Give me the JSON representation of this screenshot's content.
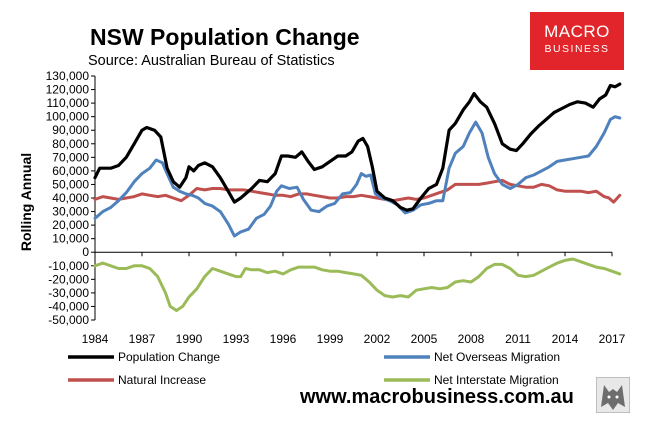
{
  "title": "NSW Population Change",
  "subtitle": "Source: Australian Bureau of Statistics",
  "logo": {
    "line1": "MACRO",
    "line2": "BUSINESS",
    "icon": "wolf-icon",
    "color": "#e1252a"
  },
  "website": "www.macrobusiness.com.au",
  "chart_data": {
    "type": "line",
    "title": "NSW Population Change",
    "xlabel": "",
    "ylabel": "Rolling Annual",
    "xlim": [
      1984,
      2017
    ],
    "ylim": [
      -50000,
      130000
    ],
    "x_ticks": [
      "1984",
      "1987",
      "1990",
      "1993",
      "1996",
      "1999",
      "2002",
      "2005",
      "2008",
      "2011",
      "2014",
      "2017"
    ],
    "y_ticks": [
      "130,000",
      "120,000",
      "110,000",
      "100,000",
      "90,000",
      "80,000",
      "70,000",
      "60,000",
      "50,000",
      "40,000",
      "30,000",
      "20,000",
      "10,000",
      "0",
      "-10,000",
      "-20,000",
      "-30,000",
      "-40,000",
      "-50,000"
    ],
    "grid": false,
    "legend_position": "bottom",
    "series": [
      {
        "name": "Population Change",
        "color": "#000000",
        "points": [
          [
            1984,
            55000
          ],
          [
            1984.3,
            62000
          ],
          [
            1985,
            62000
          ],
          [
            1985.5,
            64000
          ],
          [
            1986,
            70000
          ],
          [
            1986.5,
            80000
          ],
          [
            1987,
            90000
          ],
          [
            1987.3,
            92000
          ],
          [
            1987.8,
            90000
          ],
          [
            1988.2,
            85000
          ],
          [
            1988.6,
            62000
          ],
          [
            1989,
            52000
          ],
          [
            1989.4,
            48000
          ],
          [
            1989.8,
            55000
          ],
          [
            1990,
            63000
          ],
          [
            1990.3,
            60000
          ],
          [
            1990.6,
            64000
          ],
          [
            1991,
            66000
          ],
          [
            1991.5,
            63000
          ],
          [
            1992,
            55000
          ],
          [
            1992.5,
            45000
          ],
          [
            1992.9,
            37000
          ],
          [
            1993.3,
            40000
          ],
          [
            1994,
            47000
          ],
          [
            1994.5,
            53000
          ],
          [
            1995,
            52000
          ],
          [
            1995.5,
            58000
          ],
          [
            1995.9,
            71000
          ],
          [
            1996.3,
            71000
          ],
          [
            1996.8,
            70000
          ],
          [
            1997.2,
            74000
          ],
          [
            1997.6,
            67000
          ],
          [
            1998,
            61000
          ],
          [
            1998.5,
            63000
          ],
          [
            1999,
            67000
          ],
          [
            1999.5,
            71000
          ],
          [
            2000,
            71000
          ],
          [
            2000.4,
            74000
          ],
          [
            2000.8,
            82000
          ],
          [
            2001.1,
            84000
          ],
          [
            2001.4,
            78000
          ],
          [
            2001.7,
            63000
          ],
          [
            2002,
            45000
          ],
          [
            2002.5,
            40000
          ],
          [
            2003,
            38000
          ],
          [
            2003.5,
            33000
          ],
          [
            2003.9,
            31000
          ],
          [
            2004.3,
            32000
          ],
          [
            2004.8,
            40000
          ],
          [
            2005.3,
            47000
          ],
          [
            2005.8,
            50000
          ],
          [
            2006.2,
            62000
          ],
          [
            2006.6,
            90000
          ],
          [
            2007,
            95000
          ],
          [
            2007.5,
            105000
          ],
          [
            2007.9,
            111000
          ],
          [
            2008.2,
            117000
          ],
          [
            2008.6,
            111000
          ],
          [
            2009,
            107000
          ],
          [
            2009.5,
            95000
          ],
          [
            2010,
            80000
          ],
          [
            2010.5,
            76000
          ],
          [
            2010.9,
            75000
          ],
          [
            2011.3,
            80000
          ],
          [
            2011.8,
            87000
          ],
          [
            2012.3,
            93000
          ],
          [
            2012.8,
            98000
          ],
          [
            2013.3,
            103000
          ],
          [
            2013.8,
            106000
          ],
          [
            2014.3,
            109000
          ],
          [
            2014.8,
            111000
          ],
          [
            2015.3,
            110000
          ],
          [
            2015.8,
            107000
          ],
          [
            2016.2,
            113000
          ],
          [
            2016.6,
            116000
          ],
          [
            2016.9,
            123000
          ],
          [
            2017.2,
            122000
          ],
          [
            2017.5,
            124000
          ]
        ]
      },
      {
        "name": "Net Overseas Migration",
        "color": "#4f81bd",
        "points": [
          [
            1984,
            25000
          ],
          [
            1984.5,
            30000
          ],
          [
            1985,
            33000
          ],
          [
            1985.5,
            38000
          ],
          [
            1986,
            44000
          ],
          [
            1986.5,
            52000
          ],
          [
            1987,
            58000
          ],
          [
            1987.5,
            62000
          ],
          [
            1987.9,
            68000
          ],
          [
            1988.3,
            66000
          ],
          [
            1988.6,
            58000
          ],
          [
            1989,
            48000
          ],
          [
            1989.4,
            45000
          ],
          [
            1989.8,
            43000
          ],
          [
            1990.2,
            42000
          ],
          [
            1990.6,
            40000
          ],
          [
            1991,
            36000
          ],
          [
            1991.5,
            34000
          ],
          [
            1992,
            30000
          ],
          [
            1992.5,
            21000
          ],
          [
            1992.9,
            12000
          ],
          [
            1993.3,
            15000
          ],
          [
            1993.8,
            17000
          ],
          [
            1994.3,
            25000
          ],
          [
            1994.8,
            28000
          ],
          [
            1995.2,
            34000
          ],
          [
            1995.6,
            45000
          ],
          [
            1995.9,
            49000
          ],
          [
            1996.4,
            47000
          ],
          [
            1996.9,
            48000
          ],
          [
            1997.3,
            39000
          ],
          [
            1997.8,
            31000
          ],
          [
            1998.3,
            30000
          ],
          [
            1998.8,
            34000
          ],
          [
            1999.3,
            36000
          ],
          [
            1999.8,
            43000
          ],
          [
            2000.3,
            44000
          ],
          [
            2000.7,
            50000
          ],
          [
            2001,
            58000
          ],
          [
            2001.3,
            56000
          ],
          [
            2001.6,
            57000
          ],
          [
            2001.9,
            43000
          ],
          [
            2002.3,
            40000
          ],
          [
            2002.8,
            38000
          ],
          [
            2003.3,
            35000
          ],
          [
            2003.8,
            29000
          ],
          [
            2004.3,
            31000
          ],
          [
            2004.8,
            35000
          ],
          [
            2005.3,
            36000
          ],
          [
            2005.8,
            38000
          ],
          [
            2006.2,
            38000
          ],
          [
            2006.6,
            62000
          ],
          [
            2007,
            73000
          ],
          [
            2007.5,
            78000
          ],
          [
            2007.9,
            88000
          ],
          [
            2008.3,
            96000
          ],
          [
            2008.7,
            88000
          ],
          [
            2009.1,
            70000
          ],
          [
            2009.5,
            58000
          ],
          [
            2010,
            50000
          ],
          [
            2010.5,
            47000
          ],
          [
            2011,
            50000
          ],
          [
            2011.5,
            55000
          ],
          [
            2012,
            57000
          ],
          [
            2012.5,
            60000
          ],
          [
            2013,
            63000
          ],
          [
            2013.5,
            67000
          ],
          [
            2014,
            68000
          ],
          [
            2014.5,
            69000
          ],
          [
            2015,
            70000
          ],
          [
            2015.5,
            71000
          ],
          [
            2016,
            78000
          ],
          [
            2016.5,
            88000
          ],
          [
            2016.9,
            98000
          ],
          [
            2017.2,
            100000
          ],
          [
            2017.5,
            99000
          ]
        ]
      },
      {
        "name": "Natural Increase",
        "color": "#c0504d",
        "points": [
          [
            1984,
            39000
          ],
          [
            1984.5,
            41000
          ],
          [
            1985,
            40000
          ],
          [
            1985.5,
            39000
          ],
          [
            1986,
            40000
          ],
          [
            1986.5,
            41000
          ],
          [
            1987,
            43000
          ],
          [
            1987.5,
            42000
          ],
          [
            1988,
            41000
          ],
          [
            1988.5,
            42000
          ],
          [
            1989,
            40000
          ],
          [
            1989.5,
            38000
          ],
          [
            1990,
            42000
          ],
          [
            1990.5,
            47000
          ],
          [
            1991,
            46000
          ],
          [
            1991.5,
            47000
          ],
          [
            1992,
            47000
          ],
          [
            1992.5,
            46000
          ],
          [
            1993,
            46000
          ],
          [
            1993.5,
            46000
          ],
          [
            1994,
            45000
          ],
          [
            1994.5,
            44000
          ],
          [
            1995,
            43000
          ],
          [
            1995.5,
            42000
          ],
          [
            1996,
            42000
          ],
          [
            1996.5,
            41000
          ],
          [
            1997,
            43000
          ],
          [
            1997.5,
            43000
          ],
          [
            1998,
            42000
          ],
          [
            1998.5,
            41000
          ],
          [
            1999,
            40000
          ],
          [
            1999.5,
            40000
          ],
          [
            2000,
            41000
          ],
          [
            2000.5,
            41000
          ],
          [
            2001,
            42000
          ],
          [
            2001.5,
            41000
          ],
          [
            2002,
            40000
          ],
          [
            2002.5,
            39000
          ],
          [
            2003,
            38000
          ],
          [
            2003.5,
            39000
          ],
          [
            2004,
            40000
          ],
          [
            2004.5,
            39000
          ],
          [
            2005,
            40000
          ],
          [
            2005.5,
            42000
          ],
          [
            2006,
            44000
          ],
          [
            2006.5,
            46000
          ],
          [
            2007,
            50000
          ],
          [
            2007.5,
            50000
          ],
          [
            2008,
            50000
          ],
          [
            2008.5,
            50000
          ],
          [
            2009,
            51000
          ],
          [
            2009.5,
            52000
          ],
          [
            2010,
            53000
          ],
          [
            2010.5,
            50000
          ],
          [
            2011,
            49000
          ],
          [
            2011.5,
            48000
          ],
          [
            2012,
            48000
          ],
          [
            2012.5,
            50000
          ],
          [
            2013,
            49000
          ],
          [
            2013.5,
            46000
          ],
          [
            2014,
            45000
          ],
          [
            2014.5,
            45000
          ],
          [
            2015,
            45000
          ],
          [
            2015.5,
            44000
          ],
          [
            2016,
            45000
          ],
          [
            2016.5,
            41000
          ],
          [
            2016.8,
            40000
          ],
          [
            2017.1,
            37000
          ],
          [
            2017.5,
            42000
          ]
        ]
      },
      {
        "name": "Net Interstate Migration",
        "color": "#9bbb59",
        "points": [
          [
            1984,
            -10000
          ],
          [
            1984.5,
            -8000
          ],
          [
            1985,
            -10000
          ],
          [
            1985.5,
            -12000
          ],
          [
            1986,
            -12000
          ],
          [
            1986.5,
            -10000
          ],
          [
            1987,
            -10000
          ],
          [
            1987.5,
            -12000
          ],
          [
            1988,
            -18000
          ],
          [
            1988.5,
            -30000
          ],
          [
            1988.8,
            -40000
          ],
          [
            1989.2,
            -43000
          ],
          [
            1989.6,
            -40000
          ],
          [
            1990,
            -33000
          ],
          [
            1990.5,
            -27000
          ],
          [
            1991,
            -18000
          ],
          [
            1991.5,
            -12000
          ],
          [
            1992,
            -14000
          ],
          [
            1992.5,
            -16000
          ],
          [
            1993,
            -18000
          ],
          [
            1993.3,
            -18000
          ],
          [
            1993.6,
            -12000
          ],
          [
            1994,
            -13000
          ],
          [
            1994.5,
            -13000
          ],
          [
            1995,
            -15000
          ],
          [
            1995.5,
            -14000
          ],
          [
            1996,
            -16000
          ],
          [
            1996.5,
            -13000
          ],
          [
            1997,
            -11000
          ],
          [
            1997.5,
            -11000
          ],
          [
            1998,
            -11000
          ],
          [
            1998.5,
            -13000
          ],
          [
            1999,
            -14000
          ],
          [
            1999.5,
            -14000
          ],
          [
            2000,
            -15000
          ],
          [
            2000.5,
            -16000
          ],
          [
            2001,
            -17000
          ],
          [
            2001.5,
            -22000
          ],
          [
            2002,
            -28000
          ],
          [
            2002.5,
            -32000
          ],
          [
            2003,
            -33000
          ],
          [
            2003.5,
            -32000
          ],
          [
            2004,
            -33000
          ],
          [
            2004.5,
            -28000
          ],
          [
            2005,
            -27000
          ],
          [
            2005.5,
            -26000
          ],
          [
            2006,
            -27000
          ],
          [
            2006.5,
            -26000
          ],
          [
            2007,
            -22000
          ],
          [
            2007.5,
            -21000
          ],
          [
            2008,
            -22000
          ],
          [
            2008.5,
            -18000
          ],
          [
            2009,
            -12000
          ],
          [
            2009.5,
            -9000
          ],
          [
            2010,
            -9000
          ],
          [
            2010.5,
            -12000
          ],
          [
            2011,
            -17000
          ],
          [
            2011.5,
            -18000
          ],
          [
            2012,
            -17000
          ],
          [
            2012.5,
            -14000
          ],
          [
            2013,
            -11000
          ],
          [
            2013.5,
            -8000
          ],
          [
            2014,
            -6000
          ],
          [
            2014.5,
            -5000
          ],
          [
            2015,
            -7000
          ],
          [
            2015.5,
            -9000
          ],
          [
            2016,
            -11000
          ],
          [
            2016.5,
            -12000
          ],
          [
            2017,
            -14000
          ],
          [
            2017.5,
            -16000
          ]
        ]
      }
    ]
  }
}
